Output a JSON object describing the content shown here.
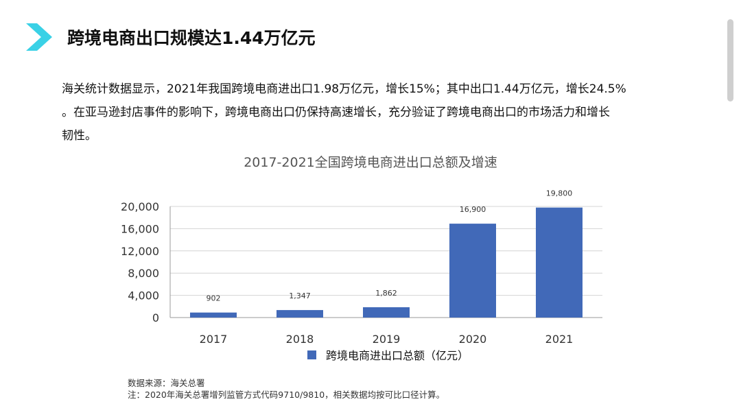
{
  "slide": {
    "title": "跨境电商出口规模达1.44万亿元",
    "paragraph_lines": [
      "海关统计数据显示，2021年我国跨境电商进出口1.98万亿元，增长15%；其中出口1.44万亿元，增长24.5%",
      "。在亚马逊封店事件的影响下，跨境电商出口仍保持高速增长，充分验证了跨境电商出口的市场活力和增长",
      "韧性。"
    ],
    "source_note": "数据来源：海关总署",
    "footnote": "注：2020年海关总署增列监管方式代码9710/9810，相关数据均按可比口径计算。",
    "colors": {
      "accent": "#3ad1e6",
      "bar": "#4169b8"
    }
  },
  "chart_data": {
    "type": "bar",
    "title": "2017-2021全国跨境电商进出口总额及增速",
    "categories": [
      "2017",
      "2018",
      "2019",
      "2020",
      "2021"
    ],
    "series": [
      {
        "name": "跨境电商进出口总额（亿元）",
        "values": [
          902,
          1347,
          1862,
          16900,
          19800
        ]
      }
    ],
    "data_labels": [
      "902",
      "1,347",
      "1,862",
      "16,900",
      "19,800"
    ],
    "yticks": [
      0,
      4000,
      8000,
      12000,
      16000,
      20000
    ],
    "ytick_labels": [
      "0",
      "4,000",
      "8,000",
      "12,000",
      "16,000",
      "20,000"
    ],
    "ylim": [
      0,
      20000
    ],
    "grid": true,
    "legend_position": "bottom"
  }
}
